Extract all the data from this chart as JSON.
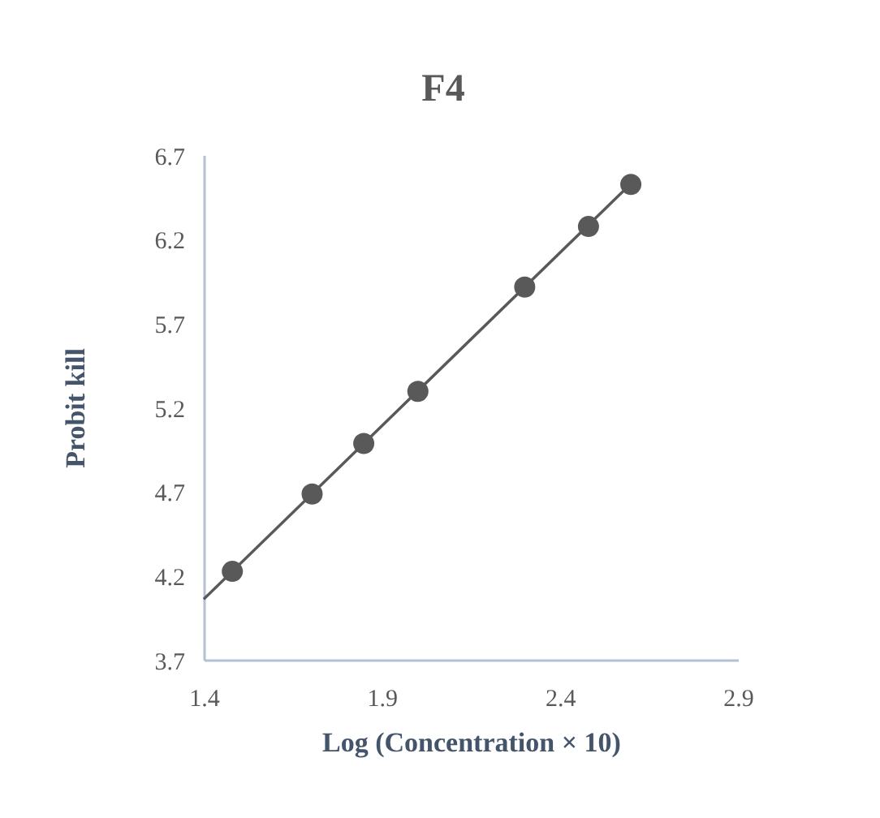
{
  "chart_data": {
    "type": "scatter",
    "title": "F4",
    "xlabel": "Log (Concentration × 10)",
    "ylabel": "Probit kill",
    "xlim": [
      1.4,
      2.9
    ],
    "xticks": [
      1.4,
      1.9,
      2.4,
      2.9
    ],
    "ylim": [
      3.7,
      6.7
    ],
    "yticks": [
      3.7,
      4.2,
      4.7,
      5.2,
      5.7,
      6.2,
      6.7
    ],
    "grid": false,
    "marker": "circle",
    "series": [
      {
        "color": "#595959",
        "x": [
          1.478,
          1.702,
          1.847,
          1.999,
          2.299,
          2.478,
          2.597
        ],
        "values": [
          4.23,
          4.69,
          4.99,
          5.3,
          5.92,
          6.28,
          6.53
        ]
      },
      {
        "type": "line",
        "color": "#595959",
        "x": [
          1.4,
          2.6
        ],
        "values": [
          4.07,
          6.54
        ],
        "marker": "none",
        "line_style": "solid"
      }
    ]
  }
}
